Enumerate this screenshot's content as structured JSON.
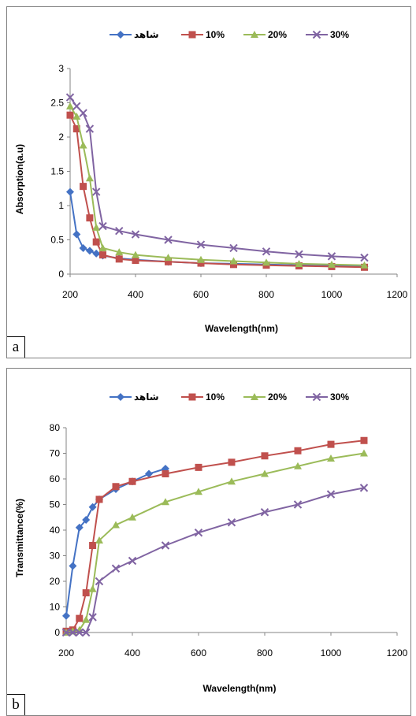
{
  "colors": {
    "blank": "#4472C4",
    "s10": "#C0504D",
    "s20": "#9BBB59",
    "s30": "#8064A2"
  },
  "chart_data": [
    {
      "type": "line",
      "panel_label": "a",
      "xlabel": "Wavelength(nm)",
      "ylabel": "Absorption(a.u)",
      "xlim": [
        200,
        1200
      ],
      "ylim": [
        0,
        3
      ],
      "xticks": [
        200,
        400,
        600,
        800,
        1000,
        1200
      ],
      "yticks": [
        0,
        0.5,
        1,
        1.5,
        2,
        2.5,
        3
      ],
      "ytick_labels": [
        "0",
        "0.5",
        "1",
        "1.5",
        "2",
        "2.5",
        "3"
      ],
      "legend_position": "top-center",
      "series": [
        {
          "name": "شاهد",
          "marker": "diamond",
          "color": "#4472C4",
          "x": [
            200,
            220,
            240,
            260,
            280,
            300,
            350,
            400,
            500,
            600,
            700,
            800,
            900,
            1000,
            1100
          ],
          "y": [
            1.2,
            0.58,
            0.38,
            0.34,
            0.3,
            0.27,
            0.23,
            0.21,
            0.18,
            0.16,
            0.15,
            0.14,
            0.13,
            0.12,
            0.11
          ]
        },
        {
          "name": "10%",
          "marker": "square",
          "color": "#C0504D",
          "x": [
            200,
            220,
            240,
            260,
            280,
            300,
            350,
            400,
            500,
            600,
            700,
            800,
            900,
            1000,
            1100
          ],
          "y": [
            2.32,
            2.12,
            1.28,
            0.82,
            0.47,
            0.28,
            0.22,
            0.2,
            0.18,
            0.16,
            0.14,
            0.13,
            0.12,
            0.11,
            0.1
          ]
        },
        {
          "name": "20%",
          "marker": "triangle",
          "color": "#9BBB59",
          "x": [
            200,
            220,
            240,
            260,
            280,
            300,
            350,
            400,
            500,
            600,
            700,
            800,
            900,
            1000,
            1100
          ],
          "y": [
            2.45,
            2.3,
            1.88,
            1.4,
            0.68,
            0.38,
            0.32,
            0.28,
            0.24,
            0.21,
            0.19,
            0.17,
            0.15,
            0.14,
            0.13
          ]
        },
        {
          "name": "30%",
          "marker": "x",
          "color": "#8064A2",
          "x": [
            200,
            220,
            240,
            260,
            280,
            300,
            350,
            400,
            500,
            600,
            700,
            800,
            900,
            1000,
            1100
          ],
          "y": [
            2.58,
            2.45,
            2.35,
            2.12,
            1.2,
            0.7,
            0.63,
            0.58,
            0.5,
            0.43,
            0.38,
            0.33,
            0.29,
            0.26,
            0.24
          ]
        }
      ]
    },
    {
      "type": "line",
      "panel_label": "b",
      "xlabel": "Wavelength(nm)",
      "ylabel": "Transmittance(%)",
      "xlim": [
        200,
        1200
      ],
      "ylim": [
        0,
        80
      ],
      "xticks": [
        200,
        400,
        600,
        800,
        1000,
        1200
      ],
      "yticks": [
        0,
        10,
        20,
        30,
        40,
        50,
        60,
        70,
        80
      ],
      "ytick_labels": [
        "0",
        "10",
        "20",
        "30",
        "40",
        "50",
        "60",
        "70",
        "80"
      ],
      "legend_position": "top-center",
      "series": [
        {
          "name": "شاهد",
          "marker": "diamond",
          "color": "#4472C4",
          "x": [
            200,
            220,
            240,
            260,
            280,
            300,
            350,
            400,
            450,
            500
          ],
          "y": [
            6.5,
            26,
            41,
            44,
            49,
            52,
            56,
            59,
            62,
            64
          ]
        },
        {
          "name": "10%",
          "marker": "square",
          "color": "#C0504D",
          "x": [
            200,
            220,
            240,
            260,
            280,
            300,
            350,
            400,
            500,
            600,
            700,
            800,
            900,
            1000,
            1100
          ],
          "y": [
            0.5,
            1,
            5.5,
            15.5,
            34,
            52,
            57,
            59,
            62,
            64.5,
            66.5,
            69,
            71,
            73.5,
            75
          ]
        },
        {
          "name": "20%",
          "marker": "triangle",
          "color": "#9BBB59",
          "x": [
            200,
            220,
            240,
            260,
            280,
            300,
            350,
            400,
            500,
            600,
            700,
            800,
            900,
            1000,
            1100
          ],
          "y": [
            0,
            0.5,
            1,
            5,
            17,
            36,
            42,
            45,
            51,
            55,
            59,
            62,
            65,
            68,
            70
          ]
        },
        {
          "name": "30%",
          "marker": "x",
          "color": "#8064A2",
          "x": [
            200,
            220,
            240,
            260,
            280,
            300,
            350,
            400,
            500,
            600,
            700,
            800,
            900,
            1000,
            1100
          ],
          "y": [
            0,
            0,
            0,
            0,
            6,
            20,
            25,
            28,
            34,
            39,
            43,
            47,
            50,
            54,
            56.5
          ]
        }
      ]
    }
  ]
}
